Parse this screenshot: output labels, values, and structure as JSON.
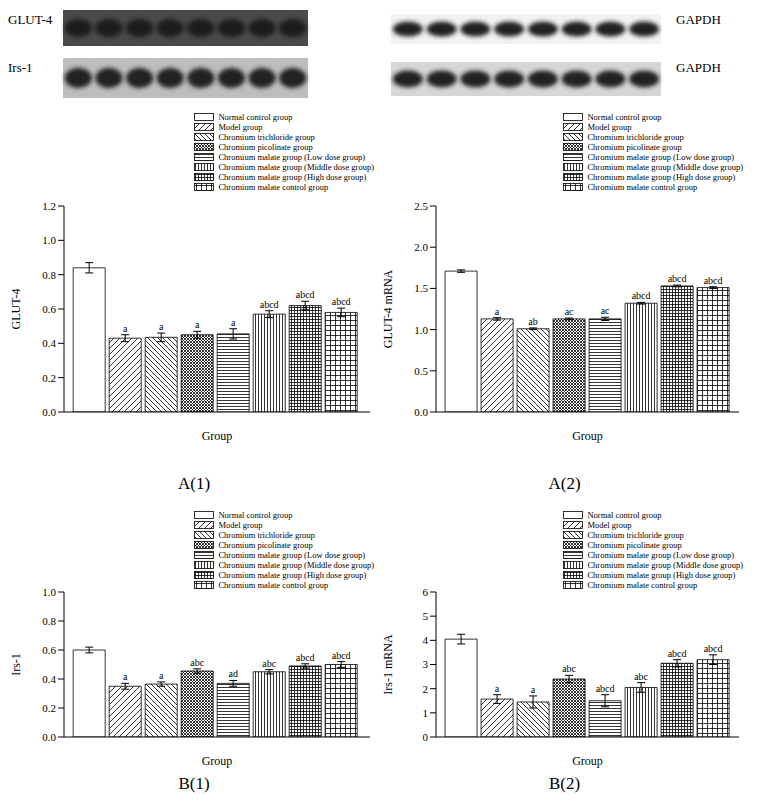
{
  "blots": [
    {
      "label": "GLUT-4",
      "control_label": "GAPDH"
    },
    {
      "label": "Irs-1",
      "control_label": "GAPDH"
    }
  ],
  "chart_data": [
    {
      "type": "bar",
      "caption": "A(1)",
      "x_label": "Group",
      "y_label": "GLUT-4",
      "categories": [
        null
      ],
      "ylim": [
        0,
        1.2
      ],
      "yticks": [
        {
          "value": 0,
          "label": "0.0"
        },
        0.2,
        0.4,
        0.6,
        0.8,
        {
          "value": 1,
          "label": "1.0"
        },
        1.2
      ],
      "tick_labels": "y",
      "legend": "upper right",
      "series": [
        {
          "name": "Normal control group",
          "color": "#000000",
          "values": [
            0.84
          ],
          "errors": [
            0.03
          ],
          "significance": [
            null
          ]
        },
        {
          "name": "Model group",
          "color": "#000000",
          "values": [
            0.43
          ],
          "errors": [
            0.02
          ],
          "significance": [
            "a"
          ]
        },
        {
          "name": "Chromium trichloride group",
          "color": "#000000",
          "values": [
            0.435
          ],
          "errors": [
            0.025
          ],
          "significance": [
            "a"
          ]
        },
        {
          "name": "Chromium picolinate group",
          "color": "#000000",
          "values": [
            0.45
          ],
          "errors": [
            0.02
          ],
          "significance": [
            "a"
          ]
        },
        {
          "name": "Chromium malate group (Low dose group)",
          "color": "#000000",
          "values": [
            0.455
          ],
          "errors": [
            0.03
          ],
          "significance": [
            "a"
          ]
        },
        {
          "name": "Chromium malate group (Middle dose group)",
          "color": "#000000",
          "values": [
            0.57
          ],
          "errors": [
            0.02
          ],
          "significance": [
            "abcd"
          ]
        },
        {
          "name": "Chromium malate group (High dose group)",
          "color": "#000000",
          "values": [
            0.62
          ],
          "errors": [
            0.025
          ],
          "significance": [
            "abcd"
          ]
        },
        {
          "name": "Chromium malate control group",
          "color": "#000000",
          "values": [
            0.58
          ],
          "errors": [
            0.025
          ],
          "significance": [
            "abcd"
          ]
        }
      ]
    },
    {
      "type": "bar",
      "caption": "A(2)",
      "x_label": "Group",
      "y_label": "GLUT-4 mRNA",
      "categories": [
        null
      ],
      "ylim": [
        0,
        2.5
      ],
      "yticks": [
        {
          "value": 0,
          "label": "0.0"
        },
        0.5,
        {
          "value": 1,
          "label": "1.0"
        },
        1.5,
        {
          "value": 2,
          "label": "2.0"
        },
        2.5
      ],
      "tick_labels": "y",
      "legend": "upper right",
      "series": [
        {
          "name": "Normal control group",
          "color": "#000000",
          "values": [
            1.71
          ],
          "errors": [
            0.015
          ],
          "significance": [
            null
          ]
        },
        {
          "name": "Model group",
          "color": "#000000",
          "values": [
            1.13
          ],
          "errors": [
            0.015
          ],
          "significance": [
            "a"
          ]
        },
        {
          "name": "Chromium trichloride group",
          "color": "#000000",
          "values": [
            1.01
          ],
          "errors": [
            0.01
          ],
          "significance": [
            "ab"
          ]
        },
        {
          "name": "Chromium picolinate group",
          "color": "#000000",
          "values": [
            1.13
          ],
          "errors": [
            0.01
          ],
          "significance": [
            "ac"
          ]
        },
        {
          "name": "Chromium malate group (Low dose group)",
          "color": "#000000",
          "values": [
            1.13
          ],
          "errors": [
            0.02
          ],
          "significance": [
            "ac"
          ]
        },
        {
          "name": "Chromium malate group (Middle dose group)",
          "color": "#000000",
          "values": [
            1.32
          ],
          "errors": [
            0.01
          ],
          "significance": [
            "abcd"
          ]
        },
        {
          "name": "Chromium malate group (High dose group)",
          "color": "#000000",
          "values": [
            1.53
          ],
          "errors": [
            0.01
          ],
          "significance": [
            "abcd"
          ]
        },
        {
          "name": "Chromium malate control group",
          "color": "#000000",
          "values": [
            1.51
          ],
          "errors": [
            0.01
          ],
          "significance": [
            "abcd"
          ]
        }
      ]
    },
    {
      "type": "bar",
      "caption": "B(1)",
      "x_label": "Group",
      "y_label": "Irs-1",
      "categories": [
        null
      ],
      "ylim": [
        0,
        1
      ],
      "yticks": [
        {
          "value": 0,
          "label": "0.0"
        },
        0.2,
        0.4,
        0.6,
        0.8,
        {
          "value": 1,
          "label": "1.0"
        }
      ],
      "tick_labels": "y",
      "legend": "upper right",
      "series": [
        {
          "name": "Normal control group",
          "color": "#000000",
          "values": [
            0.6
          ],
          "errors": [
            0.02
          ],
          "significance": [
            null
          ]
        },
        {
          "name": "Model group",
          "color": "#000000",
          "values": [
            0.35
          ],
          "errors": [
            0.02
          ],
          "significance": [
            "a"
          ]
        },
        {
          "name": "Chromium trichloride group",
          "color": "#000000",
          "values": [
            0.365
          ],
          "errors": [
            0.015
          ],
          "significance": [
            "a"
          ]
        },
        {
          "name": "Chromium picolinate group",
          "color": "#000000",
          "values": [
            0.455
          ],
          "errors": [
            0.015
          ],
          "significance": [
            "abc"
          ]
        },
        {
          "name": "Chromium malate group (Low dose group)",
          "color": "#000000",
          "values": [
            0.37
          ],
          "errors": [
            0.02
          ],
          "significance": [
            "ad"
          ]
        },
        {
          "name": "Chromium malate group (Middle dose group)",
          "color": "#000000",
          "values": [
            0.45
          ],
          "errors": [
            0.015
          ],
          "significance": [
            "abc"
          ]
        },
        {
          "name": "Chromium malate group (High dose group)",
          "color": "#000000",
          "values": [
            0.49
          ],
          "errors": [
            0.015
          ],
          "significance": [
            "abcd"
          ]
        },
        {
          "name": "Chromium malate control group",
          "color": "#000000",
          "values": [
            0.5
          ],
          "errors": [
            0.02
          ],
          "significance": [
            "abcd"
          ]
        }
      ]
    },
    {
      "type": "bar",
      "caption": "B(2)",
      "x_label": "Group",
      "y_label": "Irs-1 mRNA",
      "categories": [
        null
      ],
      "ylim": [
        0,
        6
      ],
      "yticks": [
        0,
        1,
        2,
        3,
        4,
        5,
        6
      ],
      "tick_labels": "y",
      "legend": "upper right",
      "series": [
        {
          "name": "Normal control group",
          "color": "#000000",
          "values": [
            4.05
          ],
          "errors": [
            0.2
          ],
          "significance": [
            null
          ]
        },
        {
          "name": "Model group",
          "color": "#000000",
          "values": [
            1.57
          ],
          "errors": [
            0.18
          ],
          "significance": [
            "a"
          ]
        },
        {
          "name": "Chromium trichloride group",
          "color": "#000000",
          "values": [
            1.45
          ],
          "errors": [
            0.25
          ],
          "significance": [
            "a"
          ]
        },
        {
          "name": "Chromium picolinate group",
          "color": "#000000",
          "values": [
            2.4
          ],
          "errors": [
            0.15
          ],
          "significance": [
            "abc"
          ]
        },
        {
          "name": "Chromium malate group (Low dose group)",
          "color": "#000000",
          "values": [
            1.5
          ],
          "errors": [
            0.25
          ],
          "significance": [
            "abcd"
          ]
        },
        {
          "name": "Chromium malate group (Middle dose group)",
          "color": "#000000",
          "values": [
            2.05
          ],
          "errors": [
            0.2
          ],
          "significance": [
            "abc"
          ]
        },
        {
          "name": "Chromium malate group (High dose group)",
          "color": "#000000",
          "values": [
            3.05
          ],
          "errors": [
            0.15
          ],
          "significance": [
            "abcd"
          ]
        },
        {
          "name": "Chromium malate control group",
          "color": "#000000",
          "values": [
            3.2
          ],
          "errors": [
            0.2
          ],
          "significance": [
            "abcd"
          ]
        }
      ]
    }
  ]
}
